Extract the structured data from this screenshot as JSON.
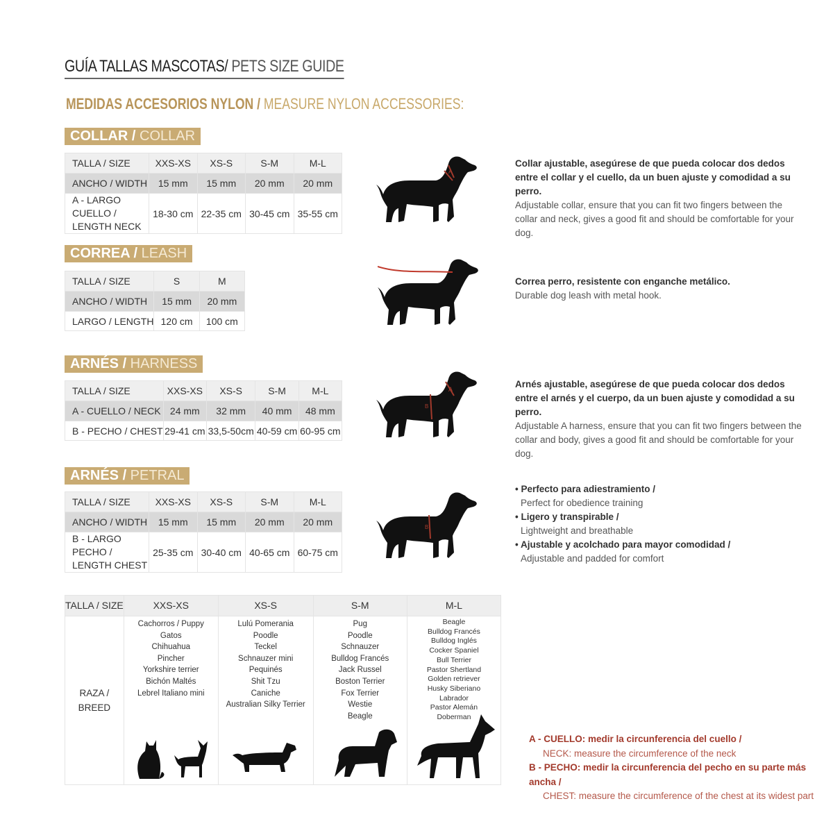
{
  "title": {
    "es": "GUÍA TALLAS MASCOTAS/",
    "en": " PETS SIZE GUIDE"
  },
  "subtitle": {
    "es": "MEDIDAS ACCESORIOS NYLON /",
    "en": " MEASURE NYLON ACCESSORIES:"
  },
  "collar": {
    "label_es": "COLLAR /",
    "label_en": " COLLAR",
    "headers": [
      "TALLA / SIZE",
      "XXS-XS",
      "XS-S",
      "S-M",
      "M-L"
    ],
    "rows": [
      [
        "ANCHO / WIDTH",
        "15 mm",
        "15 mm",
        "20 mm",
        "20 mm"
      ],
      [
        "A - LARGO CUELLO / LENGTH NECK",
        "18-30 cm",
        "22-35 cm",
        "30-45 cm",
        "35-55 cm"
      ]
    ],
    "desc_es": "Collar ajustable, asegúrese de que pueda colocar dos dedos entre el collar y el cuello, da un buen ajuste y comodidad a su perro.",
    "desc_en": "Adjustable collar, ensure that you can fit two fingers between the collar and neck, gives a good fit and should be comfortable for your dog."
  },
  "leash": {
    "label_es": "CORREA /",
    "label_en": " LEASH",
    "headers": [
      "TALLA / SIZE",
      "S",
      "M"
    ],
    "rows": [
      [
        "ANCHO / WIDTH",
        "15 mm",
        "20 mm"
      ],
      [
        "LARGO / LENGTH",
        "120 cm",
        "100 cm"
      ]
    ],
    "desc_es": "Correa perro, resistente con enganche metálico.",
    "desc_en": "Durable dog leash with metal hook."
  },
  "harness": {
    "label_es": "ARNÉS /",
    "label_en": " HARNESS",
    "headers": [
      "TALLA / SIZE",
      "XXS-XS",
      "XS-S",
      "S-M",
      "M-L"
    ],
    "rows": [
      [
        "A - CUELLO / NECK",
        "24 mm",
        "32 mm",
        "40 mm",
        "48 mm"
      ],
      [
        "B - PECHO / CHEST",
        "29-41 cm",
        "33,5-50cm",
        "40-59 cm",
        "60-95 cm"
      ]
    ],
    "desc_es": "Arnés ajustable, asegúrese de que pueda colocar dos dedos entre el arnés y el cuerpo, da un buen ajuste y comodidad a su perro.",
    "desc_en": "Adjustable A harness, ensure that you can fit two fingers between the collar and body, gives a good fit and should be comfortable for your dog."
  },
  "petral": {
    "label_es": "ARNÉS /",
    "label_en": " PETRAL",
    "headers": [
      "TALLA / SIZE",
      "XXS-XS",
      "XS-S",
      "S-M",
      "M-L"
    ],
    "rows": [
      [
        "ANCHO / WIDTH",
        "15 mm",
        "15 mm",
        "20 mm",
        "20 mm"
      ],
      [
        "B - LARGO PECHO / LENGTH CHEST",
        "25-35 cm",
        "30-40 cm",
        "40-65 cm",
        "60-75 cm"
      ]
    ],
    "features": [
      {
        "es": "• Perfecto para adiestramiento /",
        "en": "Perfect for obedience training"
      },
      {
        "es": "• Ligero y transpirable /",
        "en": "Lightweight and breathable"
      },
      {
        "es": "• Ajustable y acolchado para mayor comodidad /",
        "en": "Adjustable and padded for comfort"
      }
    ]
  },
  "breeds": {
    "headers": [
      "TALLA /  SIZE",
      "XXS-XS",
      "XS-S",
      "S-M",
      "M-L"
    ],
    "row_label": "RAZA / BREED",
    "cols": [
      [
        "Cachorros / Puppy",
        "Gatos",
        "Chihuahua",
        "Pincher",
        "Yorkshire terrier",
        "Bichón Maltés",
        "Lebrel Italiano mini"
      ],
      [
        "Lulú Pomerania",
        "Poodle",
        "Teckel",
        "Schnauzer mini",
        "Pequinés",
        "Shit Tzu",
        "Caniche",
        "Australian Silky Terrier"
      ],
      [
        "Pug",
        "Poodle",
        "Schnauzer",
        "Bulldog Francés",
        "Jack Russel",
        "Boston Terrier",
        "Fox Terrier",
        "Westie",
        "Beagle"
      ],
      [
        "Beagle",
        "Bulldog Francés",
        "Bulldog Inglés",
        "Cocker Spaniel",
        "Bull Terrier",
        "Pastor Shertland",
        "Golden retriever",
        "Husky Siberiano",
        "Labrador",
        "Pastor Alemán",
        "Doberman"
      ]
    ]
  },
  "legend": [
    {
      "es": "A - CUELLO: medir la circunferencia del cuello /",
      "en": "NECK: measure the circumference of the neck"
    },
    {
      "es": "B - PECHO: medir la circunferencia del pecho en su parte más ancha /",
      "en": "CHEST: measure the circumference of the chest at its widest part"
    }
  ],
  "colors": {
    "accent": "#c9ab73",
    "measure_red": "#a33a2c",
    "dark": "#111111"
  }
}
